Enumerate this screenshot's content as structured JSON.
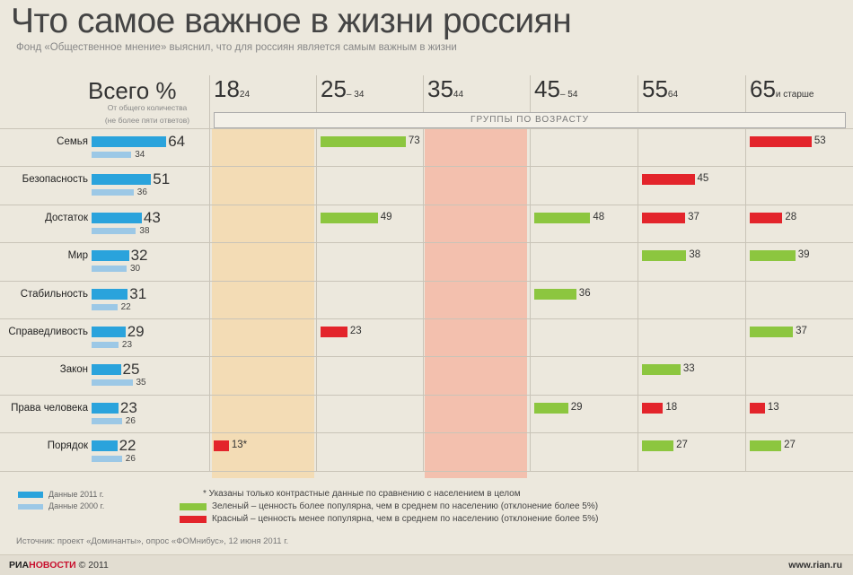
{
  "header": {
    "title": "Что самое важное в жизни россиян",
    "subtitle": "Фонд «Общественное мнение» выяснил, что для россиян является самым важным в жизни"
  },
  "total": {
    "heading": "Всего %",
    "note1": "От общего количества",
    "note2": "(не более пяти ответов)"
  },
  "groups_label": "ГРУППЫ ПО ВОЗРАСТУ",
  "age_groups": [
    {
      "main": "18",
      "sub": "24"
    },
    {
      "main": "25",
      "sub": "– 34"
    },
    {
      "main": "35",
      "sub": "44"
    },
    {
      "main": "45",
      "sub": "– 54"
    },
    {
      "main": "55",
      "sub": "64"
    },
    {
      "main": "65",
      "sub": "и старше"
    }
  ],
  "colors": {
    "blue2011": "#2aa3dc",
    "blue2000": "#9cc8e6",
    "green": "#8cc63f",
    "red": "#e3242b",
    "stripe18": "#f5d9ae",
    "stripe35": "#f5b8a6"
  },
  "chart_data": {
    "type": "bar",
    "categories": [
      "Семья",
      "Безопасность",
      "Достаток",
      "Мир",
      "Стабильность",
      "Справедливость",
      "Закон",
      "Права человека",
      "Порядок"
    ],
    "series": [
      {
        "name": "Данные 2011 г.",
        "values": [
          64,
          51,
          43,
          32,
          31,
          29,
          25,
          23,
          22
        ]
      },
      {
        "name": "Данные 2000 г.",
        "values": [
          34,
          36,
          38,
          30,
          22,
          23,
          35,
          26,
          26
        ]
      }
    ],
    "age_group_values": [
      {
        "group": "18",
        "cells": [
          null,
          null,
          null,
          null,
          null,
          null,
          null,
          null,
          {
            "value": 13,
            "label": "13*",
            "color": "red"
          }
        ]
      },
      {
        "group": "25",
        "cells": [
          {
            "value": 73,
            "label": "73",
            "color": "green"
          },
          null,
          {
            "value": 49,
            "label": "49",
            "color": "green"
          },
          null,
          null,
          {
            "value": 23,
            "label": "23",
            "color": "red"
          },
          null,
          null,
          null
        ]
      },
      {
        "group": "35",
        "cells": [
          null,
          null,
          null,
          null,
          null,
          null,
          null,
          null,
          null
        ]
      },
      {
        "group": "45",
        "cells": [
          null,
          null,
          {
            "value": 48,
            "label": "48",
            "color": "green"
          },
          null,
          {
            "value": 36,
            "label": "36",
            "color": "green"
          },
          null,
          null,
          {
            "value": 29,
            "label": "29",
            "color": "green"
          },
          null
        ]
      },
      {
        "group": "55",
        "cells": [
          null,
          {
            "value": 45,
            "label": "45",
            "color": "red"
          },
          {
            "value": 37,
            "label": "37",
            "color": "red"
          },
          {
            "value": 38,
            "label": "38",
            "color": "green"
          },
          null,
          null,
          {
            "value": 33,
            "label": "33",
            "color": "green"
          },
          {
            "value": 18,
            "label": "18",
            "color": "red"
          },
          {
            "value": 27,
            "label": "27",
            "color": "green"
          }
        ]
      },
      {
        "group": "65",
        "cells": [
          {
            "value": 53,
            "label": "53",
            "color": "red"
          },
          null,
          {
            "value": 28,
            "label": "28",
            "color": "red"
          },
          {
            "value": 39,
            "label": "39",
            "color": "green"
          },
          null,
          {
            "value": 37,
            "label": "37",
            "color": "green"
          },
          null,
          {
            "value": 13,
            "label": "13",
            "color": "red"
          },
          {
            "value": 27,
            "label": "27",
            "color": "green"
          }
        ]
      }
    ]
  },
  "legend": {
    "series_2011": "Данные 2011 г.",
    "series_2000": "Данные 2000 г.",
    "note": "* Указаны только контрастные данные по сравнению с населением в целом",
    "green": "Зеленый – ценность более популярна, чем в среднем по населению (отклонение более 5%)",
    "red": "Красный – ценность менее популярна, чем в среднем по населению (отклонение более 5%)"
  },
  "source": "Источник: проект «Доминанты», опрос «ФОМнибус», 12 июня 2011 г.",
  "footer": {
    "brand_ria": "РИА",
    "brand_novosti": "НОВОСТИ",
    "copyright": "© 2011",
    "site": "www.rian.ru"
  }
}
